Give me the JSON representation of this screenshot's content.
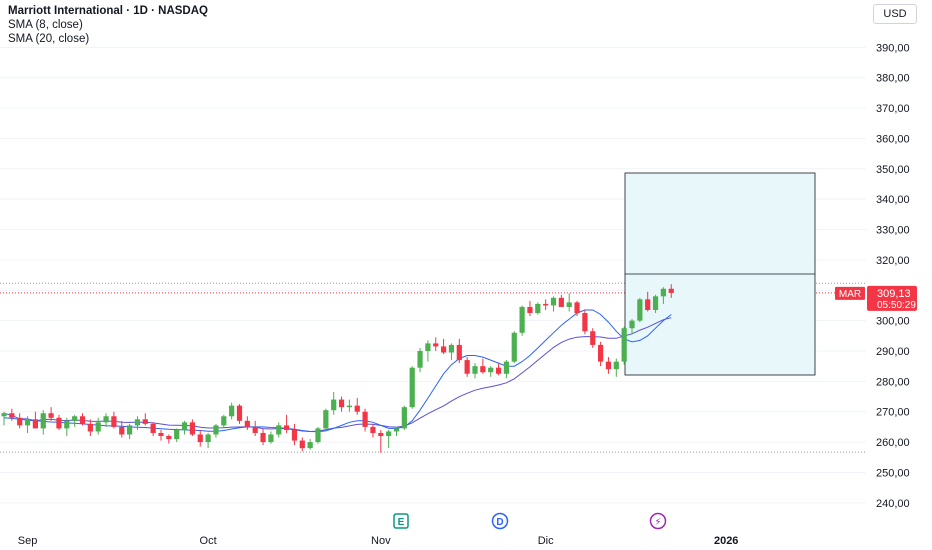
{
  "header": {
    "title": "Marriott International · 1D · NASDAQ",
    "indicators": [
      "SMA (8, close)",
      "SMA (20, close)"
    ],
    "currency": "USD"
  },
  "price_tag": {
    "symbol": "MAR",
    "price": "309,13",
    "countdown": "05:50:29",
    "value": 309.13
  },
  "colors": {
    "up": "#26a69a",
    "up_body": "#4caf50",
    "down": "#f23645",
    "sma8": "#2962ff",
    "sma20": "#5b4fd6",
    "box_fill": "#e8f7fa",
    "dotted_red": "#f23645",
    "dotted_gray": "#9598a1"
  },
  "events": [
    {
      "type": "earnings",
      "label": "E",
      "icon": "earnings-icon",
      "color": "#089981"
    },
    {
      "type": "dividend",
      "label": "D",
      "icon": "dividend-icon",
      "color": "#2962ff"
    },
    {
      "type": "split",
      "label": "⚡",
      "icon": "lightning-icon",
      "color": "#9c27b0"
    }
  ],
  "chart_data": {
    "type": "candlestick",
    "yaxis": {
      "range": [
        235,
        399
      ],
      "ticks": [
        "240,00",
        "250,00",
        "260,00",
        "270,00",
        "280,00",
        "290,00",
        "300,00",
        "310,00",
        "320,00",
        "330,00",
        "340,00",
        "350,00",
        "360,00",
        "370,00",
        "380,00",
        "390,00"
      ],
      "tick_values": [
        240,
        250,
        260,
        270,
        280,
        290,
        300,
        310,
        320,
        330,
        340,
        350,
        360,
        370,
        380,
        390
      ]
    },
    "xaxis": {
      "labels": [
        "Sep",
        "Oct",
        "Nov",
        "Dic",
        "2026"
      ],
      "label_index": [
        3,
        26,
        48,
        69,
        92
      ]
    },
    "candles": [
      [
        268.5,
        270.0,
        265.5,
        269.5
      ],
      [
        269.5,
        271.0,
        267.0,
        268.0
      ],
      [
        268.0,
        269.5,
        264.5,
        265.5
      ],
      [
        265.5,
        268.5,
        263.0,
        267.5
      ],
      [
        267.5,
        270.0,
        265.0,
        264.5
      ],
      [
        264.5,
        270.5,
        262.5,
        269.5
      ],
      [
        269.5,
        271.5,
        267.0,
        268.0
      ],
      [
        268.0,
        269.0,
        264.0,
        264.5
      ],
      [
        264.5,
        268.0,
        262.0,
        267.0
      ],
      [
        267.0,
        269.0,
        265.0,
        268.5
      ],
      [
        268.5,
        269.5,
        265.5,
        266.0
      ],
      [
        266.0,
        267.5,
        262.0,
        263.5
      ],
      [
        263.5,
        268.0,
        262.5,
        266.5
      ],
      [
        266.5,
        269.5,
        265.0,
        268.5
      ],
      [
        268.5,
        270.0,
        264.5,
        265.0
      ],
      [
        265.0,
        267.0,
        261.5,
        262.5
      ],
      [
        262.5,
        266.0,
        261.0,
        265.5
      ],
      [
        265.5,
        268.5,
        264.0,
        267.5
      ],
      [
        267.5,
        269.5,
        265.5,
        266.0
      ],
      [
        266.0,
        266.5,
        262.0,
        263.0
      ],
      [
        263.0,
        264.0,
        260.5,
        262.0
      ],
      [
        262.0,
        262.5,
        259.5,
        261.0
      ],
      [
        261.0,
        264.5,
        260.0,
        264.0
      ],
      [
        264.0,
        267.0,
        262.5,
        266.5
      ],
      [
        266.5,
        267.5,
        262.0,
        262.5
      ],
      [
        262.5,
        264.0,
        258.5,
        260.0
      ],
      [
        260.0,
        263.0,
        258.0,
        262.5
      ],
      [
        262.5,
        266.0,
        261.5,
        265.5
      ],
      [
        265.5,
        269.0,
        264.5,
        268.5
      ],
      [
        268.5,
        273.0,
        267.5,
        272.0
      ],
      [
        272.0,
        272.5,
        266.0,
        267.0
      ],
      [
        267.0,
        268.5,
        264.0,
        265.0
      ],
      [
        265.0,
        267.0,
        262.0,
        263.0
      ],
      [
        263.0,
        264.5,
        259.0,
        260.0
      ],
      [
        260.0,
        263.5,
        259.5,
        262.5
      ],
      [
        262.5,
        266.5,
        261.5,
        265.5
      ],
      [
        265.5,
        269.0,
        263.0,
        264.0
      ],
      [
        264.0,
        266.0,
        259.0,
        260.5
      ],
      [
        260.5,
        261.5,
        257.0,
        258.0
      ],
      [
        258.0,
        261.0,
        257.5,
        260.0
      ],
      [
        260.0,
        265.0,
        259.5,
        264.5
      ],
      [
        264.5,
        271.0,
        264.0,
        270.5
      ],
      [
        270.5,
        276.5,
        269.0,
        274.0
      ],
      [
        274.0,
        275.0,
        270.0,
        271.5
      ],
      [
        271.5,
        274.0,
        270.0,
        272.0
      ],
      [
        272.0,
        274.5,
        269.0,
        270.0
      ],
      [
        270.0,
        271.0,
        263.5,
        265.0
      ],
      [
        265.0,
        266.0,
        261.5,
        263.0
      ],
      [
        263.0,
        264.0,
        256.5,
        262.0
      ],
      [
        262.0,
        264.0,
        258.0,
        263.5
      ],
      [
        263.5,
        265.0,
        262.0,
        264.5
      ],
      [
        264.5,
        272.0,
        264.0,
        271.5
      ],
      [
        271.5,
        285.0,
        271.0,
        284.5
      ],
      [
        284.5,
        291.0,
        283.0,
        290.0
      ],
      [
        290.0,
        293.5,
        286.5,
        292.5
      ],
      [
        292.5,
        294.5,
        290.0,
        291.5
      ],
      [
        291.5,
        294.0,
        289.0,
        289.5
      ],
      [
        289.5,
        292.5,
        287.0,
        292.0
      ],
      [
        292.0,
        294.0,
        286.0,
        287.0
      ],
      [
        287.0,
        288.0,
        281.5,
        282.5
      ],
      [
        282.5,
        286.0,
        281.0,
        285.0
      ],
      [
        285.0,
        287.5,
        282.5,
        283.0
      ],
      [
        283.0,
        285.0,
        281.5,
        284.5
      ],
      [
        284.5,
        286.0,
        282.0,
        282.5
      ],
      [
        282.5,
        287.0,
        281.0,
        286.5
      ],
      [
        286.5,
        296.5,
        286.0,
        296.0
      ],
      [
        296.0,
        305.0,
        295.0,
        304.5
      ],
      [
        304.5,
        306.5,
        301.5,
        302.5
      ],
      [
        302.5,
        306.0,
        302.0,
        305.5
      ],
      [
        305.5,
        307.0,
        303.5,
        305.0
      ],
      [
        305.0,
        308.0,
        303.0,
        307.5
      ],
      [
        307.5,
        308.5,
        305.0,
        304.5
      ],
      [
        304.5,
        309.0,
        303.0,
        306.0
      ],
      [
        306.0,
        306.5,
        301.5,
        302.5
      ],
      [
        302.5,
        303.5,
        295.5,
        296.5
      ],
      [
        296.5,
        297.5,
        291.0,
        292.0
      ],
      [
        292.0,
        293.0,
        285.0,
        286.5
      ],
      [
        286.5,
        288.0,
        282.5,
        284.0
      ],
      [
        284.0,
        287.5,
        281.5,
        286.5
      ],
      [
        286.5,
        298.0,
        285.5,
        297.5
      ],
      [
        297.5,
        300.5,
        295.5,
        300.0
      ],
      [
        300.0,
        307.5,
        299.5,
        307.0
      ],
      [
        307.0,
        309.5,
        303.0,
        303.5
      ],
      [
        303.5,
        308.5,
        302.5,
        308.0
      ],
      [
        308.0,
        311.0,
        305.5,
        310.5
      ],
      [
        310.5,
        312.0,
        307.5,
        309.13
      ]
    ],
    "sma8": [
      268.0,
      267.8,
      267.5,
      267.2,
      267.0,
      266.8,
      266.6,
      266.5,
      266.3,
      266.2,
      266.0,
      265.8,
      265.6,
      265.4,
      265.3,
      265.2,
      265.0,
      264.9,
      264.8,
      264.6,
      264.4,
      264.2,
      264.1,
      264.0,
      263.9,
      263.8,
      263.6,
      263.6,
      263.8,
      264.3,
      264.7,
      265.0,
      265.0,
      265.0,
      264.8,
      264.7,
      264.5,
      264.2,
      263.8,
      263.5,
      263.4,
      263.7,
      264.5,
      265.5,
      266.5,
      267.0,
      267.0,
      266.5,
      265.5,
      264.5,
      264.5,
      265.0,
      267.0,
      270.5,
      274.5,
      278.5,
      282.5,
      285.5,
      287.5,
      288.5,
      288.5,
      288.0,
      287.0,
      286.0,
      285.0,
      285.0,
      286.5,
      288.5,
      291.0,
      293.5,
      296.0,
      298.5,
      300.5,
      302.5,
      303.5,
      303.5,
      302.0,
      299.5,
      296.5,
      294.0,
      293.0,
      293.5,
      295.0,
      297.5,
      300.0,
      302.0
    ]
  }
}
